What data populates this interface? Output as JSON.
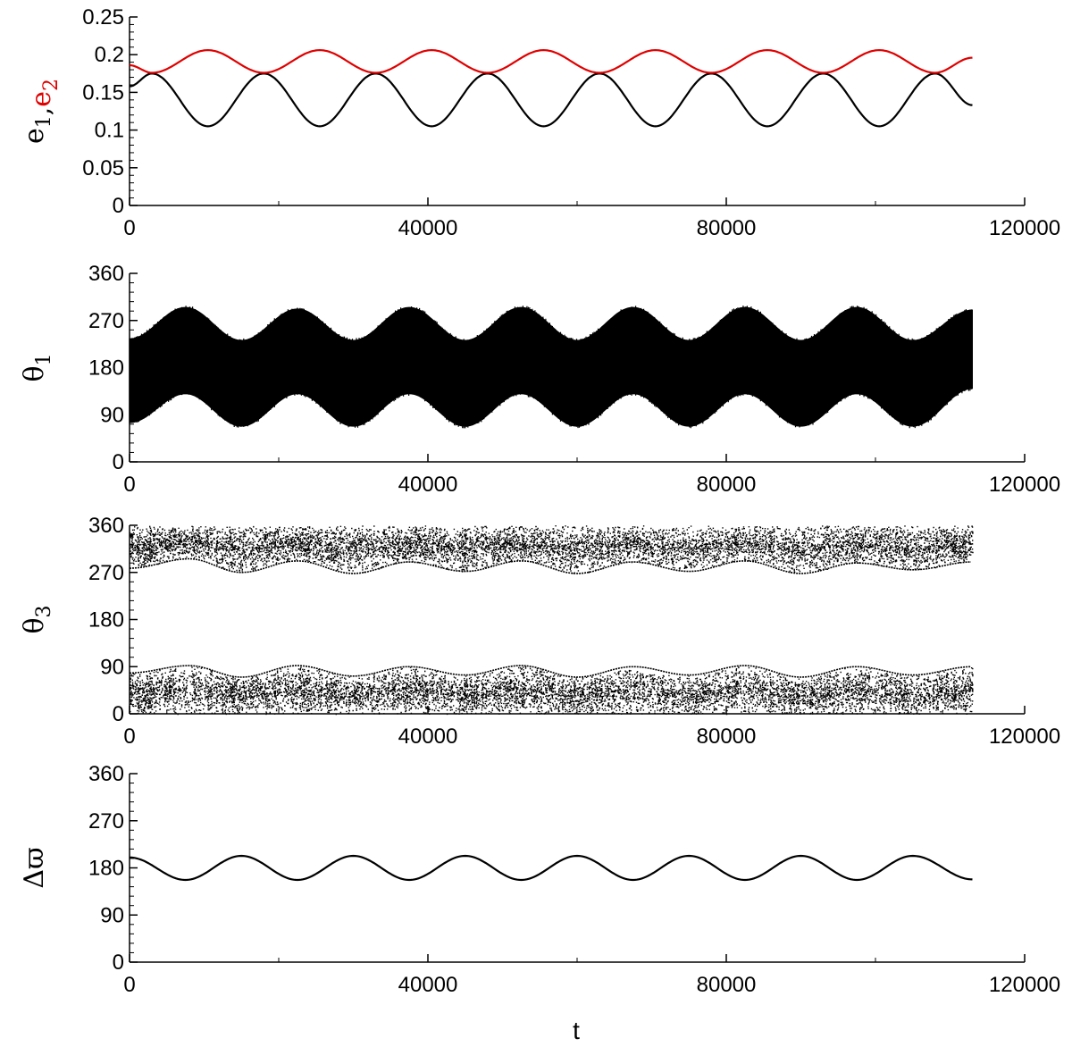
{
  "figure": {
    "xlabel": "t"
  },
  "chart_data": [
    {
      "id": "ecc",
      "type": "line",
      "ylabel_parts": [
        {
          "text": "e",
          "sub": "1",
          "color": "#000000"
        },
        {
          "text": ",",
          "sub": "",
          "color": "#000000"
        },
        {
          "text": "e",
          "sub": "2",
          "color": "#e00000"
        }
      ],
      "xlim": [
        0,
        120000
      ],
      "ylim": [
        0,
        0.25
      ],
      "xticks": [
        0,
        40000,
        80000,
        120000
      ],
      "xtick_labels": [
        "0",
        "40000",
        "80000",
        "120000"
      ],
      "yticks": [
        0,
        0.05,
        0.1,
        0.15,
        0.2,
        0.25
      ],
      "ytick_labels": [
        "0",
        "0.05",
        "0.1",
        "0.15",
        "0.2",
        "0.25"
      ],
      "series": [
        {
          "key": "e1",
          "color": "#000000",
          "x_end": 113000,
          "x": [
            0,
            3000,
            10500,
            18000,
            25500,
            33000,
            40500,
            48000,
            55500,
            63000,
            70500,
            78000,
            85500,
            93000,
            100500,
            108000,
            113000
          ],
          "y": [
            0.158,
            0.175,
            0.105,
            0.175,
            0.105,
            0.175,
            0.105,
            0.175,
            0.105,
            0.175,
            0.105,
            0.175,
            0.105,
            0.175,
            0.105,
            0.175,
            0.133
          ]
        },
        {
          "key": "e2",
          "color": "#e00000",
          "x_end": 113000,
          "x": [
            0,
            3000,
            10500,
            18000,
            25500,
            33000,
            40500,
            48000,
            55500,
            63000,
            70500,
            78000,
            85500,
            93000,
            100500,
            108000,
            113000
          ],
          "y": [
            0.186,
            0.176,
            0.206,
            0.176,
            0.206,
            0.176,
            0.206,
            0.176,
            0.206,
            0.176,
            0.206,
            0.176,
            0.206,
            0.176,
            0.206,
            0.176,
            0.196
          ]
        }
      ]
    },
    {
      "id": "theta1",
      "type": "area",
      "ylabel_parts": [
        {
          "text": "θ",
          "sub": "1",
          "color": "#000000"
        }
      ],
      "xlim": [
        0,
        120000
      ],
      "ylim": [
        0,
        360
      ],
      "xticks": [
        0,
        40000,
        80000,
        120000
      ],
      "xtick_labels": [
        "0",
        "40000",
        "80000",
        "120000"
      ],
      "yticks": [
        0,
        90,
        180,
        270,
        360
      ],
      "ytick_labels": [
        "0",
        "90",
        "180",
        "270",
        "360"
      ],
      "band": {
        "color": "#000000",
        "x": [
          0,
          7500,
          15000,
          22500,
          30000,
          37500,
          45000,
          52500,
          60000,
          67500,
          75000,
          82500,
          90000,
          97500,
          105000,
          113000
        ],
        "upper": [
          235,
          295,
          232,
          292,
          232,
          295,
          232,
          295,
          232,
          295,
          232,
          295,
          232,
          295,
          232,
          290
        ],
        "lower": [
          75,
          130,
          68,
          130,
          68,
          130,
          68,
          130,
          68,
          130,
          68,
          130,
          68,
          130,
          68,
          140
        ]
      }
    },
    {
      "id": "theta3",
      "type": "scatter",
      "ylabel_parts": [
        {
          "text": "θ",
          "sub": "3",
          "color": "#000000"
        }
      ],
      "xlim": [
        0,
        120000
      ],
      "ylim": [
        0,
        360
      ],
      "xticks": [
        0,
        40000,
        80000,
        120000
      ],
      "xtick_labels": [
        "0",
        "40000",
        "80000",
        "120000"
      ],
      "yticks": [
        0,
        90,
        180,
        270,
        360
      ],
      "ytick_labels": [
        "0",
        "90",
        "180",
        "270",
        "360"
      ],
      "x_end": 113000,
      "upper_band": {
        "x": [
          0,
          8000,
          15000,
          22500,
          30000,
          37500,
          45000,
          52500,
          60000,
          67500,
          75000,
          82500,
          90000,
          97500,
          105000,
          113000
        ],
        "low": [
          278,
          296,
          270,
          292,
          268,
          290,
          272,
          292,
          268,
          290,
          272,
          292,
          268,
          288,
          275,
          290
        ],
        "high": [
          360,
          360,
          360,
          360,
          360,
          360,
          360,
          360,
          360,
          360,
          360,
          360,
          360,
          360,
          360,
          360
        ]
      },
      "lower_band": {
        "x": [
          0,
          8000,
          15000,
          22500,
          30000,
          37500,
          45000,
          52500,
          60000,
          67500,
          75000,
          82500,
          90000,
          97500,
          105000,
          113000
        ],
        "low": [
          0,
          0,
          0,
          0,
          0,
          0,
          0,
          0,
          0,
          0,
          0,
          0,
          0,
          0,
          0,
          0
        ],
        "high": [
          78,
          92,
          70,
          92,
          72,
          90,
          74,
          92,
          70,
          90,
          74,
          92,
          70,
          90,
          74,
          90
        ]
      }
    },
    {
      "id": "dpomega",
      "type": "line",
      "ylabel_parts": [
        {
          "text": "Δϖ",
          "sub": "",
          "color": "#000000"
        }
      ],
      "xlim": [
        0,
        120000
      ],
      "ylim": [
        0,
        360
      ],
      "xticks": [
        0,
        40000,
        80000,
        120000
      ],
      "xtick_labels": [
        "0",
        "40000",
        "80000",
        "120000"
      ],
      "yticks": [
        0,
        90,
        180,
        270,
        360
      ],
      "ytick_labels": [
        "0",
        "90",
        "180",
        "270",
        "360"
      ],
      "series": [
        {
          "key": "dpomega",
          "color": "#000000",
          "x": [
            0,
            7500,
            15000,
            22500,
            30000,
            37500,
            45000,
            52500,
            60000,
            67500,
            75000,
            82500,
            90000,
            97500,
            105000,
            113000
          ],
          "y": [
            200,
            157,
            203,
            157,
            203,
            157,
            203,
            157,
            203,
            157,
            203,
            157,
            203,
            157,
            203,
            158
          ]
        }
      ]
    }
  ]
}
